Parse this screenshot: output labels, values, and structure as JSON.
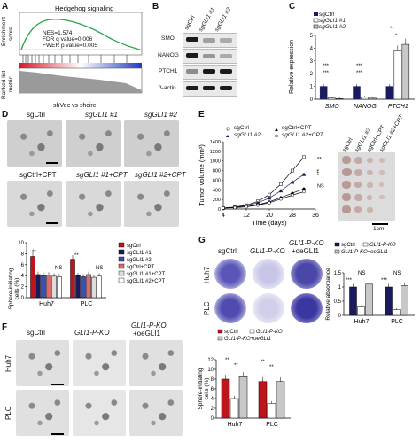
{
  "panels": {
    "A": {
      "letter": "A",
      "title": "Hedgehog signaling",
      "ylabel1": "Enrichment",
      "ylabel2": "score",
      "ylabel3": "Ranked list",
      "ylabel4": "metric",
      "nes": "NES=1.574",
      "fdr": "FDR q value=0.006",
      "fwer": "FWER p value=0.005",
      "xlabel": "shVec vs shcirc"
    },
    "B": {
      "letter": "B",
      "lanes": [
        "sgCtrl",
        "sgGLI1 #1",
        "sgGLI1 #2"
      ],
      "proteins": [
        "SMO",
        "NANOG",
        "PTCH1",
        "β-actin"
      ]
    },
    "C": {
      "letter": "C",
      "ylabel": "Relative expression",
      "genes": [
        "SMO",
        "NANOG",
        "PTCH1"
      ],
      "legend": [
        "sgCtrl",
        "sgGLI1 #1",
        "sgGLI1 #2"
      ],
      "sig": [
        "***",
        "***",
        "***",
        "***",
        "**",
        "*"
      ]
    },
    "D": {
      "letter": "D",
      "image_labels_row1": [
        "sgCtrl",
        "sgGLI1 #1",
        "sgGLI1 #2"
      ],
      "image_labels_row2": [
        "sgCtrl+CPT",
        "sgGLI1 #1+CPT",
        "sgGLI1 #2+CPT"
      ],
      "sig": [
        "**",
        "NS",
        "**",
        "NS"
      ]
    },
    "E": {
      "letter": "E",
      "legend": [
        "sgCtrl",
        "sgCtrl+CPT",
        "sgGLI1 #2",
        "sgGLI1 #2+CPT"
      ],
      "sig": [
        "**",
        "***",
        "NS"
      ],
      "photo_labels": [
        "sgCtrl",
        "sgGLI1 #2",
        "sgCtrl+CPT",
        "sgGLI1 #2+CPT"
      ],
      "scale": "1cm"
    },
    "F": {
      "letter": "F",
      "image_labels": [
        "sgCtrl",
        "GLI1-P-KO",
        "GLI1-P-KO",
        "+oeGLI1"
      ],
      "row_labels": [
        "Huh7",
        "PLC"
      ],
      "sig": [
        "**",
        "**",
        "**",
        "**"
      ]
    },
    "G": {
      "letter": "G",
      "image_labels": [
        "sgCtrl",
        "GLI1-P-KO",
        "GLI1-P-KO",
        "+oeGLI1"
      ],
      "row_labels": [
        "Huh7",
        "PLC"
      ],
      "sig": [
        "***",
        "NS",
        "***",
        "NS"
      ]
    }
  },
  "chart_data": [
    {
      "id": "C",
      "type": "bar",
      "categories": [
        "SMO",
        "NANOG",
        "PTCH1"
      ],
      "ylabel": "Relative expression",
      "ylim": [
        0,
        5
      ],
      "series": [
        {
          "name": "sgCtrl",
          "values": [
            1.0,
            1.0,
            1.0
          ]
        },
        {
          "name": "sgGLI1 #1",
          "values": [
            0.1,
            0.15,
            3.8
          ]
        },
        {
          "name": "sgGLI1 #2",
          "values": [
            0.05,
            0.08,
            4.3
          ]
        }
      ],
      "yticks": [
        0,
        1,
        2,
        3,
        4,
        5
      ]
    },
    {
      "id": "D",
      "type": "bar",
      "categories": [
        "Huh7",
        "PLC"
      ],
      "ylabel": "Sphere-initiating cells (%)",
      "ylim": [
        0,
        10
      ],
      "series": [
        {
          "name": "sgCtrl",
          "values": [
            7.5,
            7.0
          ]
        },
        {
          "name": "sgGLI1 #1",
          "values": [
            4.2,
            4.0
          ]
        },
        {
          "name": "sgGLI1 #2",
          "values": [
            4.0,
            3.8
          ]
        },
        {
          "name": "sgCtrl+CPT",
          "values": [
            4.1,
            4.2
          ]
        },
        {
          "name": "sgGLI1 #1+CPT",
          "values": [
            3.9,
            3.7
          ]
        },
        {
          "name": "sgGLI1 #2+CPT",
          "values": [
            3.8,
            3.9
          ]
        }
      ],
      "yticks": [
        0,
        2,
        4,
        6,
        8,
        10
      ]
    },
    {
      "id": "E",
      "type": "line",
      "x": [
        4,
        8,
        12,
        16,
        20,
        24,
        28,
        32
      ],
      "xlabel": "Time (days)",
      "ylabel": "Tumor volume (mm³)",
      "xlim": [
        4,
        36
      ],
      "ylim": [
        0,
        1400
      ],
      "xticks": [
        4,
        12,
        20,
        28,
        36
      ],
      "yticks": [
        0,
        200,
        400,
        600,
        800,
        1000,
        1200,
        1400
      ],
      "series": [
        {
          "name": "sgCtrl",
          "values": [
            20,
            40,
            80,
            160,
            300,
            520,
            800,
            1080
          ]
        },
        {
          "name": "sgGLI1 #2",
          "values": [
            20,
            35,
            70,
            130,
            230,
            380,
            560,
            720
          ]
        },
        {
          "name": "sgCtrl+CPT",
          "values": [
            20,
            30,
            50,
            90,
            150,
            240,
            330,
            420
          ]
        },
        {
          "name": "sgGLI1 #2+CPT",
          "values": [
            20,
            28,
            45,
            80,
            130,
            210,
            290,
            360
          ]
        }
      ]
    },
    {
      "id": "F",
      "type": "bar",
      "categories": [
        "Huh7",
        "PLC"
      ],
      "ylabel": "Sphere-initiating cells (%)",
      "ylim": [
        0,
        12
      ],
      "series": [
        {
          "name": "sgCtrl",
          "values": [
            8.0,
            7.5
          ]
        },
        {
          "name": "GLI1-P-KO",
          "values": [
            4.0,
            3.0
          ]
        },
        {
          "name": "GLI1-P-KO+oeGLI1",
          "values": [
            8.5,
            7.5
          ]
        }
      ],
      "yticks": [
        0,
        2,
        4,
        6,
        8,
        10,
        12
      ]
    },
    {
      "id": "G",
      "type": "bar",
      "categories": [
        "Huh7",
        "PLC"
      ],
      "ylabel": "Relative absorbance",
      "ylim": [
        0,
        1.5
      ],
      "series": [
        {
          "name": "sgCtrl",
          "values": [
            1.0,
            1.0
          ]
        },
        {
          "name": "GLI1-P-KO",
          "values": [
            0.3,
            0.2
          ]
        },
        {
          "name": "GLI1-P-KO+oeGLI1",
          "values": [
            1.1,
            1.05
          ]
        }
      ],
      "yticks": [
        0.0,
        0.5,
        1.0,
        1.5
      ]
    }
  ],
  "colors": {
    "navy": "#1a1a5e",
    "blue": "#3a4fb0",
    "red": "#c0141c",
    "lightred": "#e06a6a",
    "gray": "#c8c8c8",
    "white": "#ffffff",
    "green": "#2aa34a",
    "well_blue": "#4a47a8"
  }
}
